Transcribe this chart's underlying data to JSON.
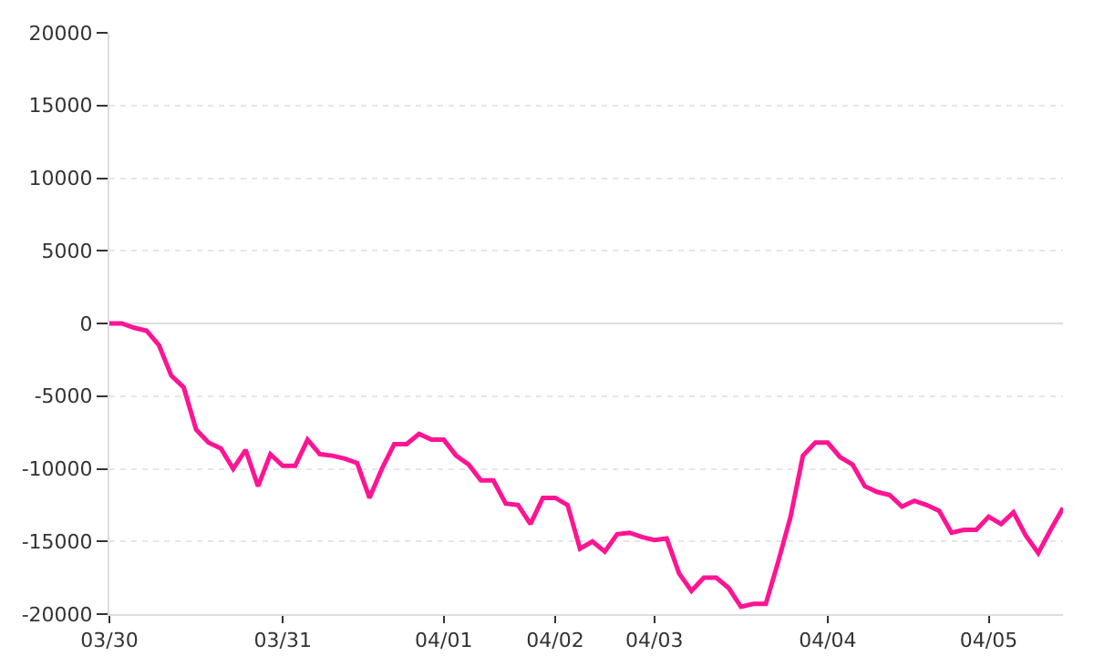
{
  "chart_data": {
    "type": "line",
    "grid": "y",
    "marker": "none",
    "line_style": "solid",
    "categories": [
      "03/30",
      null,
      null,
      null,
      null,
      null,
      null,
      null,
      null,
      null,
      null,
      null,
      null,
      null,
      "03/31",
      null,
      null,
      null,
      null,
      null,
      null,
      null,
      null,
      null,
      null,
      null,
      null,
      "04/01",
      null,
      null,
      null,
      null,
      null,
      null,
      null,
      null,
      "04/02",
      null,
      null,
      null,
      null,
      null,
      null,
      null,
      "04/03",
      null,
      null,
      null,
      null,
      null,
      null,
      null,
      null,
      null,
      null,
      null,
      null,
      null,
      "04/04",
      null,
      null,
      null,
      null,
      null,
      null,
      null,
      null,
      null,
      null,
      null,
      null,
      "04/05",
      null,
      null,
      null,
      null,
      null,
      null
    ],
    "ylim": [
      -20000,
      20000
    ],
    "yticks": [
      -20000,
      -15000,
      -10000,
      -5000,
      0,
      5000,
      10000,
      15000,
      20000
    ],
    "series": [
      {
        "color": "#ff1493",
        "values": [
          0,
          0,
          -300,
          -500,
          -1500,
          -3600,
          -4400,
          -7300,
          -8200,
          -8600,
          -10000,
          -8700,
          -11200,
          -9000,
          -9800,
          -9800,
          -8000,
          -9000,
          -9100,
          -9300,
          -9600,
          -12000,
          -10000,
          -8300,
          -8300,
          -7600,
          -8000,
          -8000,
          -9100,
          -9700,
          -10800,
          -10800,
          -12400,
          -12500,
          -13800,
          -12000,
          -12000,
          -12500,
          -15500,
          -15000,
          -15700,
          -14500,
          -14400,
          -14700,
          -14900,
          -14800,
          -17200,
          -18400,
          -17500,
          -17500,
          -18200,
          -19500,
          -19300,
          -19300,
          -16400,
          -13300,
          -9100,
          -8200,
          -8200,
          -9200,
          -9700,
          -11200,
          -11600,
          -11800,
          -12600,
          -12200,
          -12500,
          -12900,
          -14400,
          -14200,
          -14200,
          -13300,
          -13800,
          -13000,
          -14600,
          -15800,
          -14200,
          -12700
        ]
      }
    ]
  }
}
